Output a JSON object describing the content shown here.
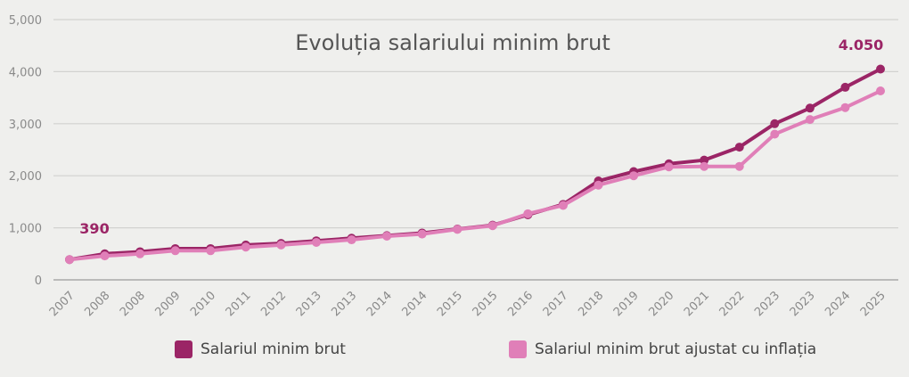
{
  "chart_data": {
    "type": "line",
    "title": "Evoluția salariului minim brut",
    "categories": [
      "2007",
      "2008",
      "2008",
      "2009",
      "2010",
      "2011",
      "2012",
      "2013",
      "2013",
      "2014",
      "2014",
      "2015",
      "2015",
      "2016",
      "2017",
      "2018",
      "2019",
      "2020",
      "2021",
      "2022",
      "2023",
      "2023",
      "2024",
      "2025"
    ],
    "series": [
      {
        "name": "Salariul minim brut",
        "color": "#9b2566",
        "values": [
          390,
          500,
          540,
          600,
          600,
          670,
          700,
          750,
          800,
          850,
          900,
          975,
          1050,
          1250,
          1450,
          1900,
          2080,
          2230,
          2300,
          2550,
          3000,
          3300,
          3700,
          4050
        ]
      },
      {
        "name": "Salariul minim brut ajustat cu inflația",
        "color": "#e07fb8",
        "values": [
          390,
          460,
          500,
          560,
          560,
          630,
          670,
          720,
          770,
          840,
          880,
          970,
          1040,
          1270,
          1430,
          1820,
          2000,
          2170,
          2180,
          2180,
          2800,
          3080,
          3310,
          3630
        ]
      }
    ],
    "ylim": [
      0,
      5000
    ],
    "yticks": [
      "0",
      "1,000",
      "2,000",
      "3,000",
      "4,000",
      "5,000"
    ],
    "grid": true,
    "legend_position": "bottom",
    "annotations": [
      {
        "text": "390",
        "category_index": 0
      },
      {
        "text": "4.050",
        "category_index": 23
      }
    ]
  }
}
